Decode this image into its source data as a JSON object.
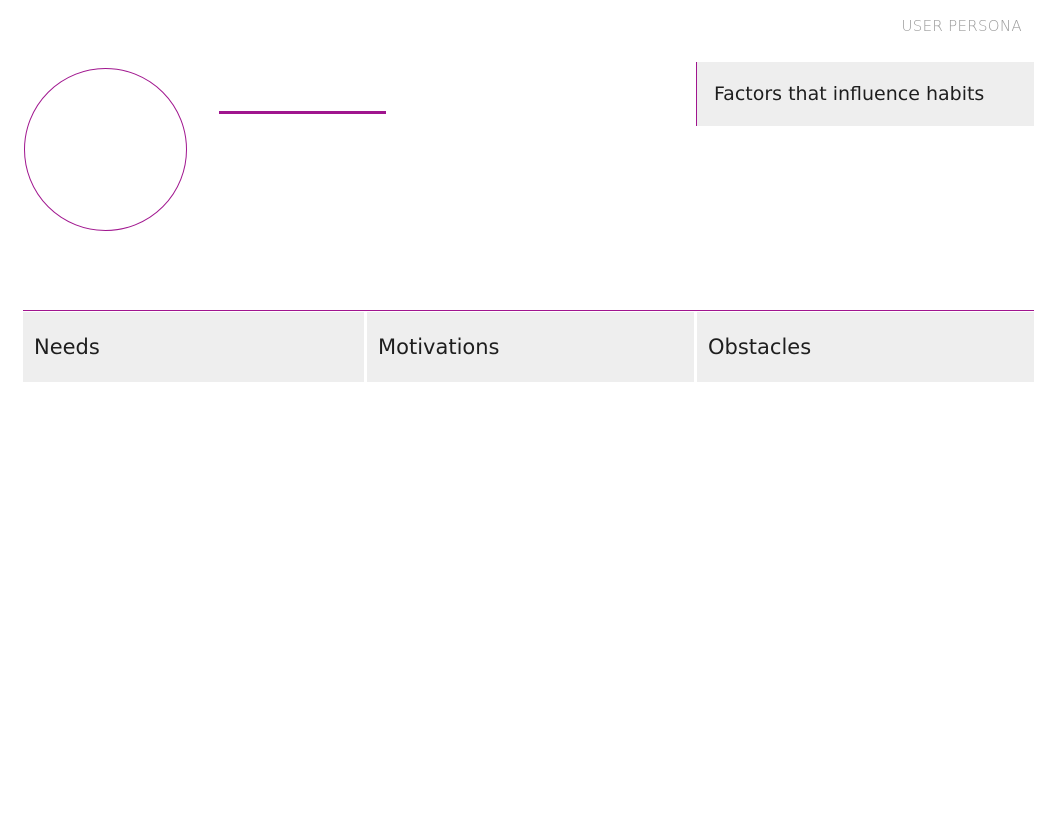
{
  "header": {
    "doc_label": "USER PERSONA"
  },
  "persona": {
    "avatar_icon": "user-avatar-placeholder",
    "name": ""
  },
  "factors": {
    "title": "Factors that influence habits"
  },
  "sections": {
    "needs": "Needs",
    "motivations": "Motivations",
    "obstacles": "Obstacles"
  },
  "colors": {
    "accent": "#a0158e",
    "label_gray": "#9a9a9a",
    "panel_bg": "#eeeeee"
  }
}
